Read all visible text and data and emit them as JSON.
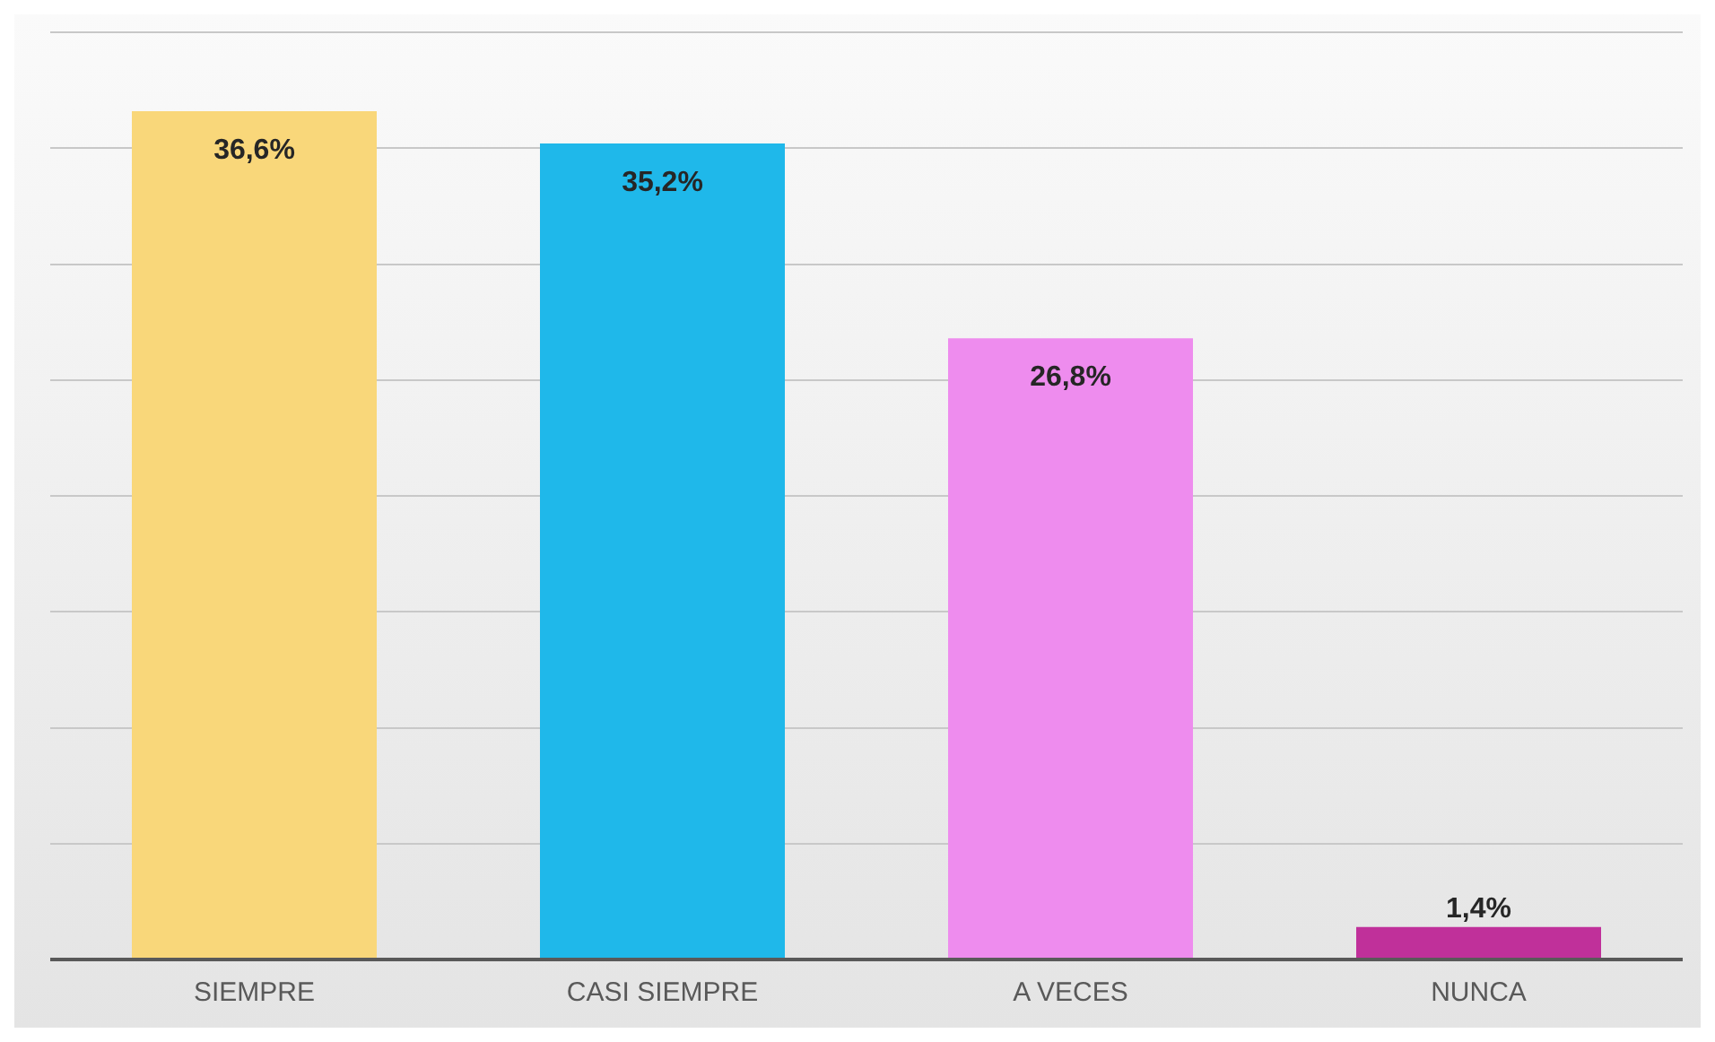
{
  "chart_data": {
    "type": "bar",
    "categories": [
      "SIEMPRE",
      "CASI SIEMPRE",
      "A VECES",
      "NUNCA"
    ],
    "values": [
      36.6,
      35.2,
      26.8,
      1.4
    ],
    "colors": [
      "#f9d77a",
      "#1fb8ea",
      "#ee8cee",
      "#c0309a"
    ],
    "value_labels": [
      "36,6%",
      "35,2%",
      "26,8%",
      "1,4%"
    ],
    "ylim": [
      0,
      40
    ],
    "yticks": [
      {
        "value": 0,
        "label": null
      },
      {
        "value": 5,
        "label": null
      },
      {
        "value": 10,
        "label": null
      },
      {
        "value": 15,
        "label": null
      },
      {
        "value": 20,
        "label": null
      },
      {
        "value": 25,
        "label": null
      },
      {
        "value": 30,
        "label": null
      },
      {
        "value": 35,
        "label": null
      },
      {
        "value": 40,
        "label": null
      }
    ],
    "grid": "y",
    "tick_labels": "x",
    "legend": false
  }
}
